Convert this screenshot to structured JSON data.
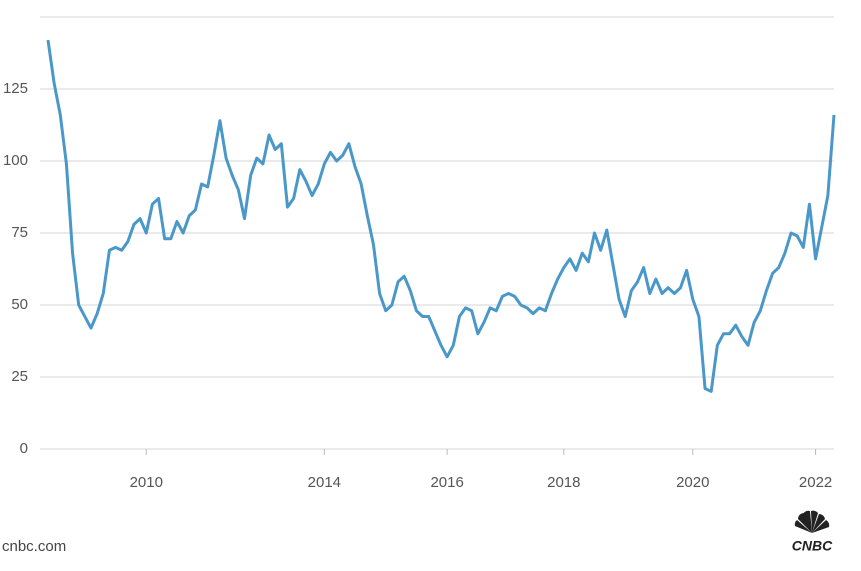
{
  "chart_data": {
    "type": "line",
    "categories": [
      null,
      null,
      null,
      null,
      null,
      null,
      null,
      null,
      null,
      null,
      null,
      null,
      null,
      null,
      null,
      null,
      "2010",
      null,
      null,
      null,
      null,
      null,
      null,
      null,
      null,
      null,
      null,
      null,
      null,
      null,
      null,
      null,
      null,
      null,
      null,
      null,
      null,
      null,
      null,
      null,
      null,
      null,
      null,
      null,
      null,
      "2014",
      null,
      null,
      null,
      null,
      null,
      null,
      null,
      null,
      null,
      null,
      null,
      null,
      null,
      null,
      null,
      null,
      null,
      null,
      null,
      "2016",
      null,
      null,
      null,
      null,
      null,
      null,
      null,
      null,
      null,
      null,
      null,
      null,
      null,
      null,
      null,
      null,
      null,
      null,
      "2018",
      null,
      null,
      null,
      null,
      null,
      null,
      null,
      null,
      null,
      null,
      null,
      null,
      null,
      null,
      null,
      null,
      null,
      null,
      null,
      null,
      "2020",
      null,
      null,
      null,
      null,
      null,
      null,
      null,
      null,
      null,
      null,
      null,
      null,
      null,
      null,
      null,
      null,
      null,
      null,
      null,
      "2022",
      null,
      null,
      null
    ],
    "values": [
      142,
      127,
      116,
      99,
      68,
      50,
      46,
      42,
      47,
      54,
      69,
      70,
      69,
      72,
      78,
      80,
      75,
      85,
      87,
      73,
      73,
      79,
      75,
      81,
      83,
      92,
      91,
      102,
      114,
      101,
      95,
      90,
      80,
      95,
      101,
      99,
      109,
      104,
      106,
      84,
      87,
      97,
      93,
      88,
      92,
      99,
      103,
      100,
      102,
      106,
      98,
      92,
      81,
      71,
      54,
      48,
      50,
      58,
      60,
      55,
      48,
      46,
      46,
      41,
      36,
      32,
      36,
      46,
      49,
      48,
      40,
      44,
      49,
      48,
      53,
      54,
      53,
      50,
      49,
      47,
      49,
      48,
      54,
      59,
      63,
      66,
      62,
      68,
      65,
      75,
      69,
      76,
      64,
      52,
      46,
      55,
      58,
      63,
      54,
      59,
      54,
      56,
      54,
      56,
      62,
      52,
      46,
      21,
      20,
      36,
      40,
      40,
      43,
      39,
      36,
      44,
      48,
      55,
      61,
      63,
      68,
      75,
      74,
      70,
      85,
      66,
      77,
      88,
      116
    ],
    "color": "#4a98c9",
    "ylim": [
      0,
      150
    ],
    "yticks": [
      0,
      25,
      50,
      75,
      100,
      125
    ],
    "grid": true
  },
  "footer": {
    "source": "cnbc.com",
    "logo": "CNBC"
  }
}
